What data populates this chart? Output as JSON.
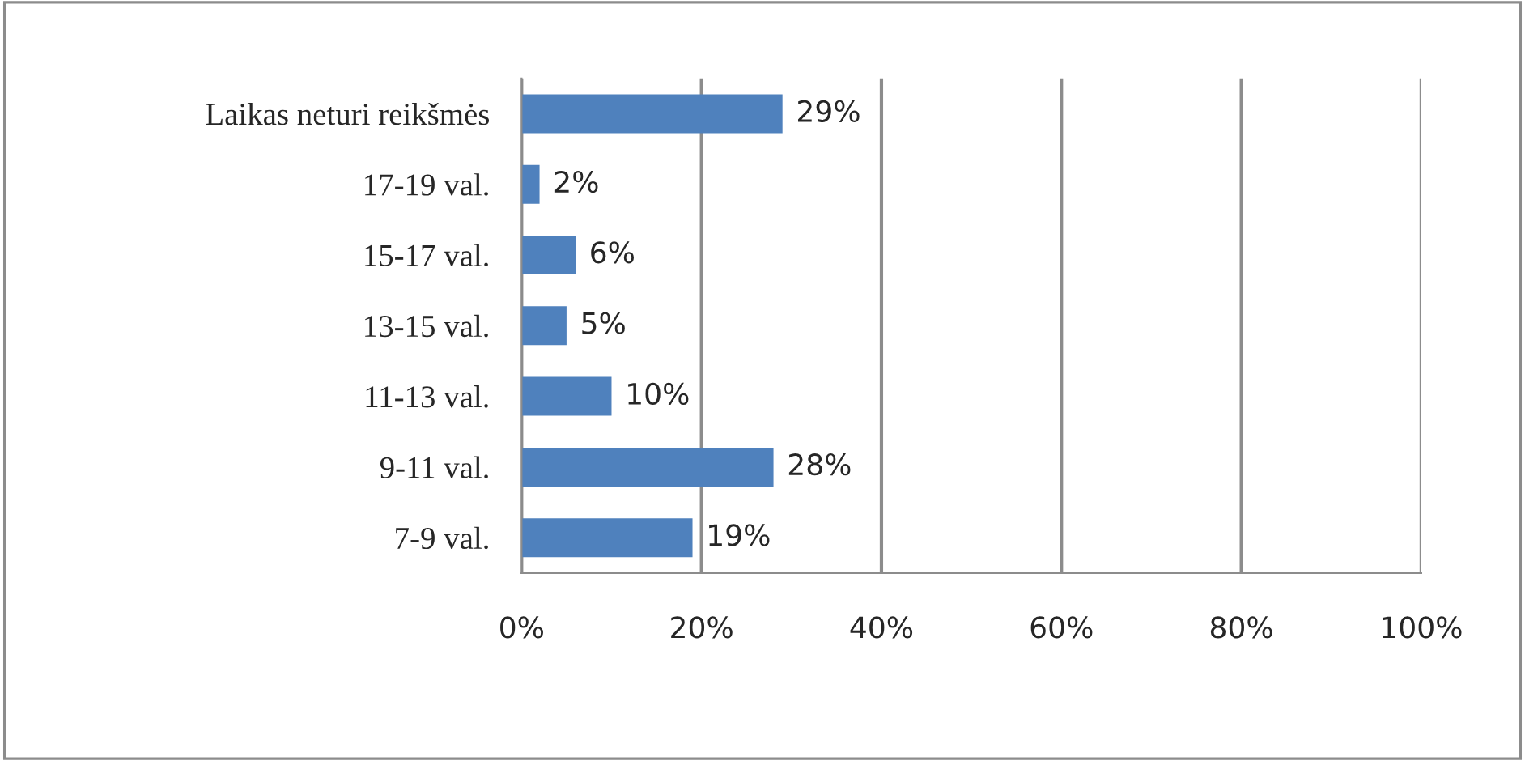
{
  "chart_data": {
    "type": "bar",
    "orientation": "horizontal",
    "categories": [
      "Laikas neturi reikšmės",
      "17-19 val.",
      "15-17 val.",
      "13-15 val.",
      "11-13 val.",
      "9-11 val.",
      "7-9 val."
    ],
    "values": [
      29,
      2,
      6,
      5,
      10,
      28,
      19
    ],
    "value_labels": [
      "29%",
      "2%",
      "6%",
      "5%",
      "10%",
      "28%",
      "19%"
    ],
    "color": "#4f81bd",
    "xlim": [
      0,
      100
    ],
    "xticks": [
      {
        "value": 0,
        "label": "0%"
      },
      {
        "value": 20,
        "label": "20%"
      },
      {
        "value": 40,
        "label": "40%"
      },
      {
        "value": 60,
        "label": "60%"
      },
      {
        "value": 80,
        "label": "80%"
      },
      {
        "value": 100,
        "label": "100%"
      }
    ],
    "grid": "x"
  }
}
